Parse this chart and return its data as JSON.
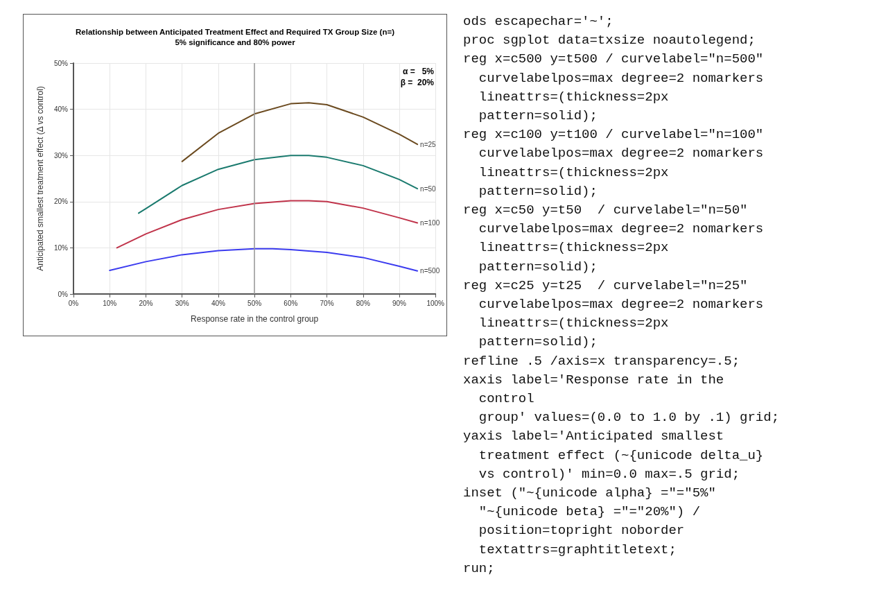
{
  "chart_data": {
    "type": "line",
    "title": "Relationship between Anticipated Treatment Effect and Required TX Group Size (n=)",
    "subtitle": "5% significance and 80% power",
    "xlabel": "Response rate in the control group",
    "ylabel": "Anticipated smallest treatment effect (Δ vs control)",
    "annotations": [
      "α =   5%",
      "β =  20%",
      "ods escapechar='~';\nproc sgplot data=txsize noautolegend;\nreg x=c500 y=t500 / curvelabel=\"n=500\"\n  curvelabelpos=max degree=2 nomarkers\n  lineattrs=(thickness=2px\n  pattern=solid);\nreg x=c100 y=t100 / curvelabel=\"n=100\"\n  curvelabelpos=max degree=2 nomarkers\n  lineattrs=(thickness=2px\n  pattern=solid);\nreg x=c50 y=t50  / curvelabel=\"n=50\"\n  curvelabelpos=max degree=2 nomarkers\n  lineattrs=(thickness=2px\n  pattern=solid);\nreg x=c25 y=t25  / curvelabel=\"n=25\"\n  curvelabelpos=max degree=2 nomarkers\n  lineattrs=(thickness=2px\n  pattern=solid);\nrefline .5 /axis=x transparency=.5;\nxaxis label='Response rate in the\n  control\n  group' values=(0.0 to 1.0 by .1) grid;\nyaxis label='Anticipated smallest\n  treatment effect (~{unicode delta_u}\n  vs control)' min=0.0 max=.5 grid;\ninset (\"~{unicode alpha} =\"=\"5%\"\n  \"~{unicode beta} =\"=\"20%\") /\n  position=topright noborder\n  textattrs=graphtitletext;\nrun;"
    ],
    "series": [
      {
        "name": "n=25",
        "color": "#6b4a1f",
        "x": [
          30,
          40,
          50,
          60,
          65,
          70,
          80,
          90,
          95
        ],
        "values": [
          28.7,
          34.8,
          39.0,
          41.2,
          41.4,
          41.0,
          38.3,
          34.6,
          32.4
        ]
      },
      {
        "name": "n=50",
        "color": "#1a7a6e",
        "x": [
          18,
          20,
          30,
          40,
          50,
          60,
          65,
          70,
          80,
          90,
          95
        ],
        "values": [
          17.5,
          18.5,
          23.5,
          27.0,
          29.1,
          30.0,
          30.0,
          29.6,
          27.8,
          24.8,
          22.8
        ]
      },
      {
        "name": "n=100",
        "color": "#c0334a",
        "x": [
          12,
          20,
          30,
          40,
          50,
          60,
          65,
          70,
          80,
          90,
          95
        ],
        "values": [
          10.0,
          13.0,
          16.1,
          18.3,
          19.6,
          20.2,
          20.2,
          20.0,
          18.6,
          16.5,
          15.4
        ]
      },
      {
        "name": "n=500",
        "color": "#3b3bef",
        "x": [
          10,
          20,
          30,
          40,
          50,
          55,
          60,
          70,
          80,
          90,
          95
        ],
        "values": [
          5.1,
          7.0,
          8.5,
          9.4,
          9.8,
          9.8,
          9.6,
          9.0,
          7.9,
          6.0,
          5.0
        ]
      }
    ],
    "xlim": [
      0,
      100
    ],
    "xticks": [
      {
        "value": 0,
        "label": "0%"
      },
      {
        "value": 10,
        "label": "10%"
      },
      {
        "value": 20,
        "label": "20%"
      },
      {
        "value": 30,
        "label": "30%"
      },
      {
        "value": 40,
        "label": "40%"
      },
      {
        "value": 50,
        "label": "50%"
      },
      {
        "value": 60,
        "label": "60%"
      },
      {
        "value": 70,
        "label": "70%"
      },
      {
        "value": 80,
        "label": "80%"
      },
      {
        "value": 90,
        "label": "90%"
      },
      {
        "value": 100,
        "label": "100%"
      }
    ],
    "ylim": [
      0,
      50
    ],
    "yticks": [
      {
        "value": 0,
        "label": "0%"
      },
      {
        "value": 10,
        "label": "10%"
      },
      {
        "value": 20,
        "label": "20%"
      },
      {
        "value": 30,
        "label": "30%"
      },
      {
        "value": 40,
        "label": "40%"
      },
      {
        "value": 50,
        "label": "50%"
      }
    ],
    "ref_lines": [
      {
        "axis": "x",
        "value": 50,
        "color": "#999999"
      }
    ],
    "grid": true,
    "legend": false,
    "marker": "none",
    "line_style": "solid"
  }
}
